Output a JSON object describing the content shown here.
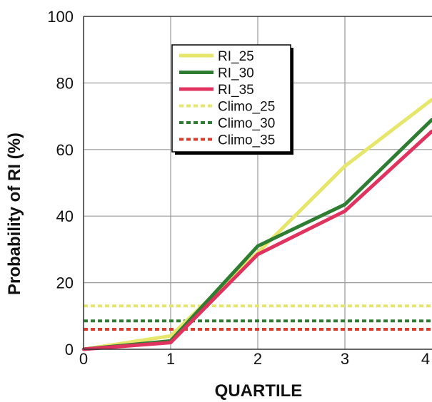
{
  "chart_data": {
    "type": "line",
    "title": "",
    "xlabel": "QUARTILE",
    "ylabel": "Probability of RI (%)",
    "xlim": [
      0,
      4
    ],
    "ylim": [
      0,
      100
    ],
    "x_ticks": [
      "0",
      "1",
      "2",
      "3",
      "4"
    ],
    "y_ticks": [
      "0",
      "20",
      "40",
      "60",
      "80",
      "100"
    ],
    "grid": true,
    "legend_position": "upper-left-center",
    "x": [
      0,
      1,
      2,
      3,
      4
    ],
    "series": [
      {
        "name": "RI_25",
        "values": [
          0,
          4,
          29,
          55,
          75
        ],
        "color": "#e6e66a",
        "style": "solid"
      },
      {
        "name": "RI_30",
        "values": [
          0,
          2.5,
          31,
          43.5,
          69
        ],
        "color": "#2e7d32",
        "style": "solid"
      },
      {
        "name": "RI_35",
        "values": [
          0,
          2,
          28.5,
          41.5,
          65.5
        ],
        "color": "#e0335f",
        "style": "solid"
      },
      {
        "name": "Climo_25",
        "values": [
          13,
          13,
          13,
          13,
          13
        ],
        "color": "#e6e66a",
        "style": "dotted"
      },
      {
        "name": "Climo_30",
        "values": [
          8.5,
          8.5,
          8.5,
          8.5,
          8.5
        ],
        "color": "#2e7d32",
        "style": "dotted"
      },
      {
        "name": "Climo_35",
        "values": [
          6,
          6,
          6,
          6,
          6
        ],
        "color": "#e03a2a",
        "style": "dotted"
      }
    ]
  }
}
